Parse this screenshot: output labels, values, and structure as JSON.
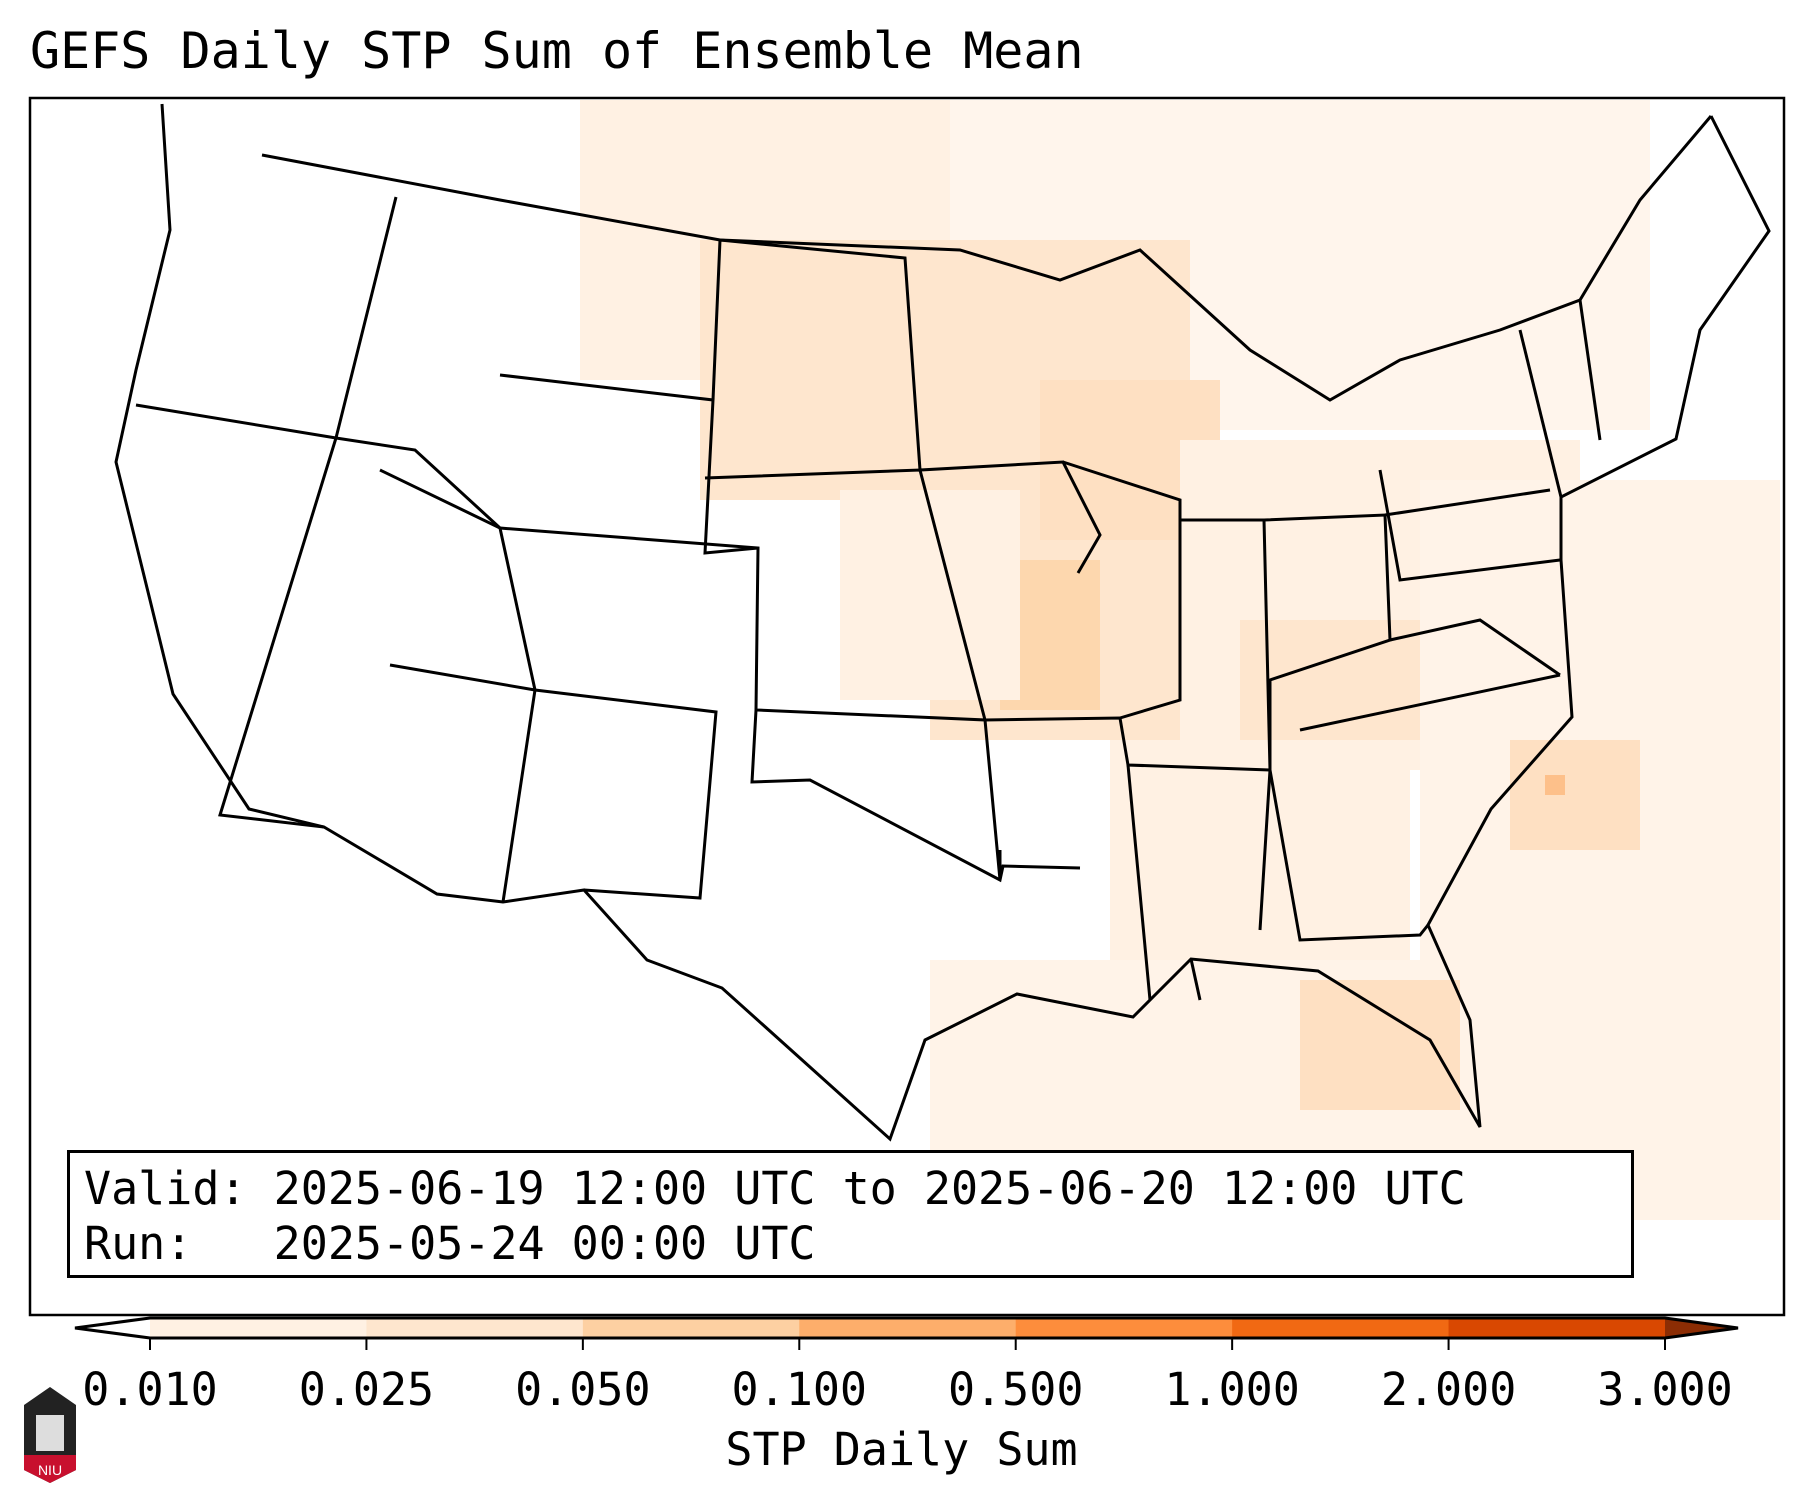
{
  "title": "GEFS Daily STP Sum of Ensemble Mean",
  "info": {
    "valid_label": "Valid:",
    "valid_value": "2025-06-19 12:00 UTC to 2025-06-20 12:00 UTC",
    "run_label": "Run:",
    "run_value": "2025-05-24 00:00 UTC"
  },
  "logo_text": "NIU",
  "chart_data": {
    "type": "heatmap",
    "title": "GEFS Daily STP Sum of Ensemble Mean",
    "region": "CONUS",
    "colorbar": {
      "label": "STP Daily Sum",
      "ticks": [
        "0.010",
        "0.025",
        "0.050",
        "0.100",
        "0.500",
        "1.000",
        "2.000",
        "3.000"
      ],
      "levels": [
        0.01,
        0.025,
        0.05,
        0.1,
        0.5,
        1.0,
        2.0,
        3.0
      ],
      "colors": [
        "#fff1e3",
        "#fee6ce",
        "#fdd0a2",
        "#fdae6b",
        "#fd8d3c",
        "#f16913",
        "#d94801"
      ],
      "extend_max_color": "#8c2d04",
      "extend_min_color": "#ffffff"
    },
    "notes_max_region": "Missouri / mid-Mississippi valley and offshore North Carolina, values ~0.05-0.1"
  }
}
